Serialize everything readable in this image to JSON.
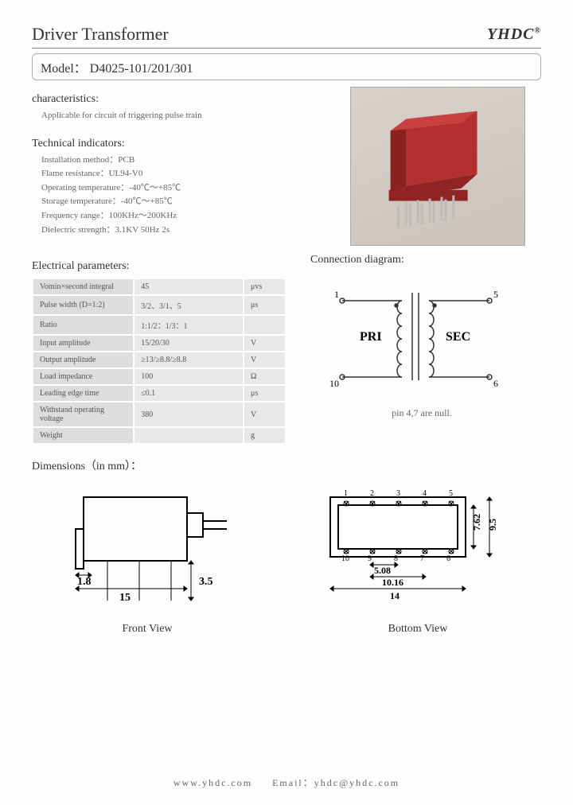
{
  "header": {
    "title": "Driver Transformer",
    "logo": "YHDC",
    "logo_mark": "®"
  },
  "model": {
    "label": "Model：",
    "value": "D4025-101/201/301"
  },
  "characteristics": {
    "heading": "characteristics:",
    "line1": "Applicable for circuit of triggering pulse train"
  },
  "technical": {
    "heading": "Technical indicators:",
    "items": [
      "Installation method：PCB",
      "Flame resistance：UL94-V0",
      "Operating temperature：-40℃～+85℃",
      "Storage temperature：-40℃～+85℃",
      "Frequency range：100KHz～200KHz",
      "Dielectric strength：3.1KV 50Hz 2s"
    ]
  },
  "electrical": {
    "heading": "Electrical parameters:",
    "rows": [
      {
        "name": "Vomin×second integral",
        "val": "45",
        "unit": "μvs"
      },
      {
        "name": "Pulse width (D=1:2)",
        "val": "3/2、3/1、5",
        "unit": "μs"
      },
      {
        "name": "Ratio",
        "val": "1:1/2：1/3：1",
        "unit": ""
      },
      {
        "name": "Input amplitude",
        "val": "15/20/30",
        "unit": "V"
      },
      {
        "name": "Output amplitude",
        "val": "≥13/≥8.8/≥8.8",
        "unit": "V"
      },
      {
        "name": "Load impedance",
        "val": "100",
        "unit": "Ω"
      },
      {
        "name": "Leading edge time",
        "val": "≤0.1",
        "unit": "μs"
      },
      {
        "name": "Withstand operating voltage",
        "val": "380",
        "unit": "V"
      },
      {
        "name": "Weight",
        "val": "",
        "unit": "g"
      }
    ]
  },
  "connection": {
    "heading": "Connection diagram:",
    "pri": "PRI",
    "sec": "SEC",
    "pin1": "1",
    "pin5": "5",
    "pin10": "10",
    "pin6": "6",
    "note": "pin 4,7 are null."
  },
  "dimensions": {
    "heading": "Dimensions（in mm）：",
    "front": {
      "label": "Front View",
      "d1": "1.8",
      "d2": "15",
      "d3": "3.5"
    },
    "bottom": {
      "label": "Bottom View",
      "pins_top": [
        "1",
        "2",
        "3",
        "4",
        "5"
      ],
      "pins_bot": [
        "10",
        "9",
        "8",
        "7",
        "6"
      ],
      "d_inner_h": "7.62",
      "d_outer_h": "9.5",
      "d_pitch1": "5.08",
      "d_pitch2": "10.16",
      "d_width": "14"
    }
  },
  "product_color": "#a82828",
  "footer": {
    "web_label": "www.yhdc.com",
    "email_label": "Email：",
    "email": "yhdc@yhdc.com"
  }
}
